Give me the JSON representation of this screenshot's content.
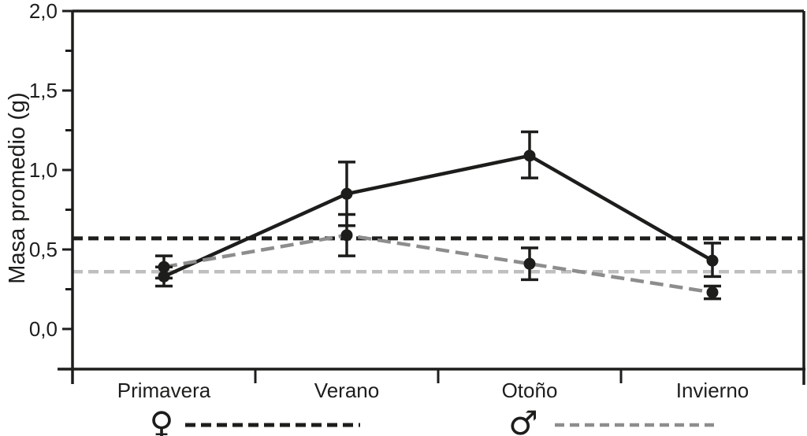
{
  "chart_data": {
    "type": "line",
    "title": "",
    "ylabel": "Masa promedio (g)",
    "xlabel": "",
    "categories": [
      "Primavera",
      "Verano",
      "Otoño",
      "Invierno"
    ],
    "y_axis": {
      "ticks": [
        {
          "v": 0.0,
          "label": "0,0"
        },
        {
          "v": 0.5,
          "label": "0,5"
        },
        {
          "v": 1.0,
          "label": "1,0"
        },
        {
          "v": 1.5,
          "label": "1,5"
        },
        {
          "v": 2.0,
          "label": "2,0"
        }
      ],
      "minor_ticks": [
        0.25,
        0.75,
        1.25,
        1.75
      ]
    },
    "ylim": [
      -0.25,
      2.0
    ],
    "grid": false,
    "legend_position": "bottom",
    "marker": "filled-circle",
    "marker_color": "#1d1d1b",
    "error_bar_color": "#1d1d1b",
    "series": [
      {
        "id": "female",
        "symbol": "♀",
        "line_style": "solid",
        "color": "#1d1d1b",
        "values": [
          0.33,
          0.85,
          1.09,
          0.43
        ],
        "err_low": [
          0.27,
          0.65,
          0.95,
          0.33
        ],
        "err_high": [
          0.39,
          1.05,
          1.24,
          0.54
        ],
        "mean_line": 0.57,
        "mean_line_style": "dashed",
        "mean_color": "#1d1d1b"
      },
      {
        "id": "male",
        "symbol": "♂",
        "line_style": "dashed",
        "color": "#8d8d8d",
        "values": [
          0.39,
          0.59,
          0.41,
          0.23
        ],
        "err_low": [
          0.32,
          0.46,
          0.31,
          0.19
        ],
        "err_high": [
          0.46,
          0.72,
          0.51,
          0.27
        ],
        "mean_line": 0.36,
        "mean_line_style": "dashed",
        "mean_color": "#bfbfbf"
      }
    ]
  }
}
